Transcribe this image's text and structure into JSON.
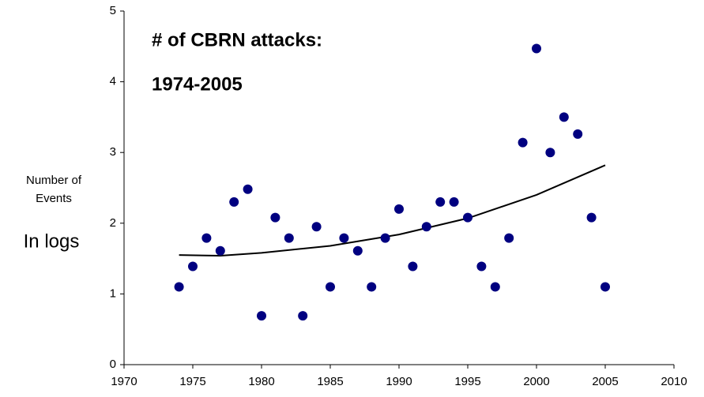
{
  "chart_data": {
    "type": "scatter",
    "title": [
      "# of CBRN attacks:",
      "1974-2005"
    ],
    "ylabel": [
      "Number of",
      "Events",
      "In logs"
    ],
    "color": "#000080",
    "x": [
      1974,
      1975,
      1976,
      1977,
      1978,
      1979,
      1980,
      1981,
      1982,
      1983,
      1984,
      1985,
      1986,
      1987,
      1988,
      1989,
      1990,
      1991,
      1992,
      1993,
      1994,
      1995,
      1996,
      1997,
      1998,
      1999,
      2000,
      2001,
      2002,
      2003,
      2004,
      2005
    ],
    "values": [
      1.1,
      1.39,
      1.79,
      1.61,
      2.3,
      2.48,
      0.69,
      2.08,
      1.79,
      0.69,
      1.95,
      1.1,
      1.79,
      1.61,
      1.1,
      1.79,
      2.2,
      1.39,
      1.95,
      2.3,
      2.3,
      2.08,
      1.39,
      1.1,
      1.79,
      3.14,
      4.47,
      3.0,
      3.5,
      3.26,
      2.08,
      1.1
    ],
    "trend": {
      "color": "#000000",
      "x": [
        1974,
        1977,
        1980,
        1985,
        1990,
        1995,
        2000,
        2005
      ],
      "values": [
        1.55,
        1.54,
        1.58,
        1.68,
        1.84,
        2.07,
        2.4,
        2.82
      ]
    },
    "xlim": [
      1970,
      2010
    ],
    "xticks": [
      1970,
      1975,
      1980,
      1985,
      1990,
      1995,
      2000,
      2005,
      2010
    ],
    "ylim": [
      0,
      5
    ],
    "yticks": [
      0,
      1,
      2,
      3,
      4,
      5
    ]
  }
}
